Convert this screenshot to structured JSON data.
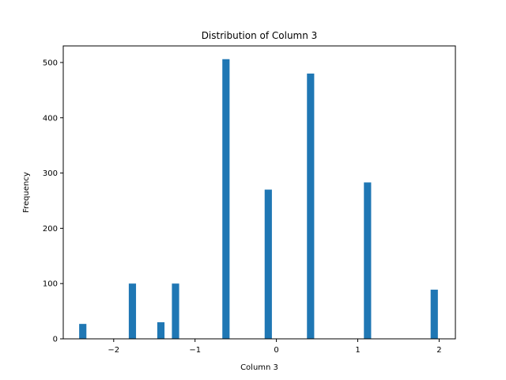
{
  "chart_data": {
    "type": "bar",
    "title": "Distribution of Column 3",
    "xlabel": "Column 3",
    "ylabel": "Frequency",
    "xlim": [
      -2.62,
      2.2
    ],
    "ylim": [
      0,
      530
    ],
    "bar_color": "#1f77b4",
    "bin_width": 0.089,
    "x": [
      -2.38,
      -1.77,
      -1.42,
      -1.24,
      -0.62,
      -0.1,
      0.42,
      1.12,
      1.94
    ],
    "values": [
      27,
      100,
      30,
      100,
      506,
      270,
      480,
      283,
      89
    ],
    "xticks": [
      -2,
      -1,
      0,
      1,
      2
    ],
    "xtick_labels": [
      "−2",
      "−1",
      "0",
      "1",
      "2"
    ],
    "yticks": [
      0,
      100,
      200,
      300,
      400,
      500
    ],
    "ytick_labels": [
      "0",
      "100",
      "200",
      "300",
      "400",
      "500"
    ],
    "grid": false,
    "legend": false
  }
}
